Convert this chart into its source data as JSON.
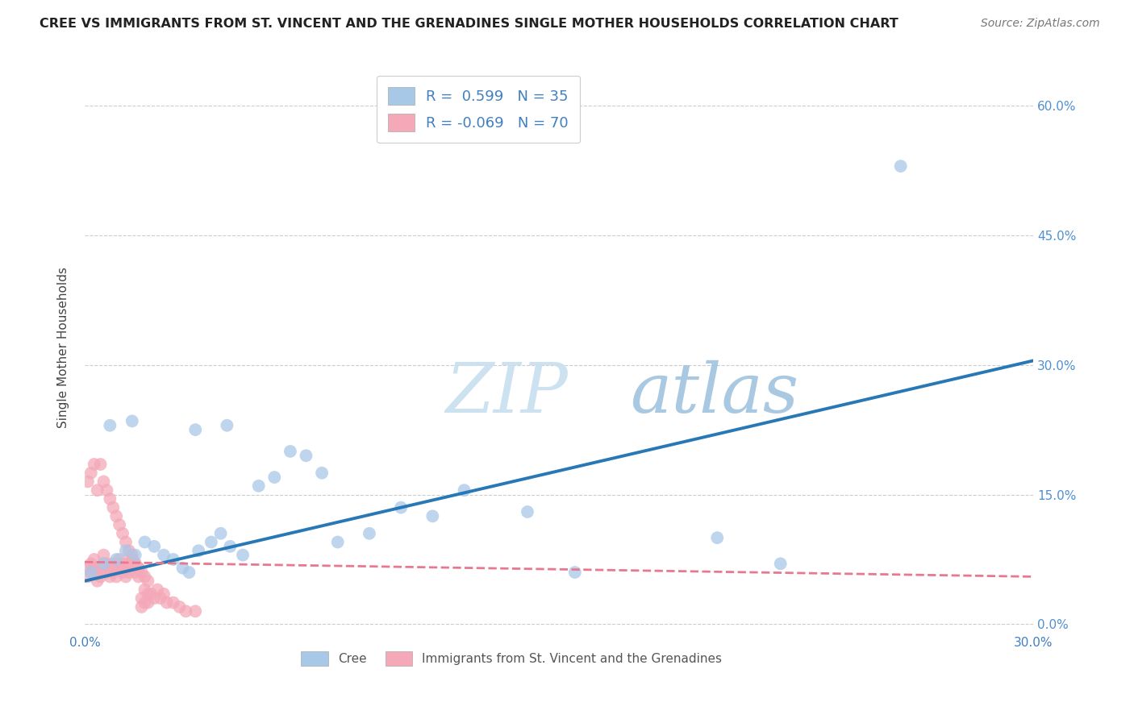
{
  "title": "CREE VS IMMIGRANTS FROM ST. VINCENT AND THE GRENADINES SINGLE MOTHER HOUSEHOLDS CORRELATION CHART",
  "source": "Source: ZipAtlas.com",
  "ylabel": "Single Mother Households",
  "xlim": [
    0.0,
    0.3
  ],
  "ylim": [
    -0.01,
    0.65
  ],
  "yticks": [
    0.0,
    0.15,
    0.3,
    0.45,
    0.6
  ],
  "ytick_labels": [
    "",
    "",
    "",
    "",
    ""
  ],
  "ytick_right_labels": [
    "0.0%",
    "15.0%",
    "30.0%",
    "45.0%",
    "60.0%"
  ],
  "xticks": [
    0.0,
    0.05,
    0.1,
    0.15,
    0.2,
    0.25,
    0.3
  ],
  "xtick_labels": [
    "0.0%",
    "",
    "",
    "",
    "",
    "",
    "30.0%"
  ],
  "blue_R": "0.599",
  "blue_N": "35",
  "pink_R": "-0.069",
  "pink_N": "70",
  "blue_color": "#a8c8e8",
  "pink_color": "#f4a8b8",
  "blue_line_color": "#2878b5",
  "pink_line_color": "#e87890",
  "axis_color": "#4080c0",
  "right_axis_color": "#5090d0",
  "legend_label_blue": "Cree",
  "legend_label_pink": "Immigrants from St. Vincent and the Grenadines",
  "blue_scatter_x": [
    0.002,
    0.006,
    0.01,
    0.013,
    0.016,
    0.019,
    0.022,
    0.025,
    0.028,
    0.031,
    0.033,
    0.036,
    0.04,
    0.043,
    0.046,
    0.05,
    0.055,
    0.06,
    0.065,
    0.07,
    0.075,
    0.08,
    0.09,
    0.1,
    0.11,
    0.12,
    0.14,
    0.155,
    0.2,
    0.22,
    0.035,
    0.045,
    0.015,
    0.008,
    0.258
  ],
  "blue_scatter_y": [
    0.06,
    0.07,
    0.075,
    0.085,
    0.08,
    0.095,
    0.09,
    0.08,
    0.075,
    0.065,
    0.06,
    0.085,
    0.095,
    0.105,
    0.09,
    0.08,
    0.16,
    0.17,
    0.2,
    0.195,
    0.175,
    0.095,
    0.105,
    0.135,
    0.125,
    0.155,
    0.13,
    0.06,
    0.1,
    0.07,
    0.225,
    0.23,
    0.235,
    0.23,
    0.53
  ],
  "pink_scatter_x": [
    0.001,
    0.001,
    0.002,
    0.002,
    0.003,
    0.003,
    0.004,
    0.004,
    0.005,
    0.005,
    0.006,
    0.006,
    0.007,
    0.007,
    0.008,
    0.008,
    0.009,
    0.009,
    0.01,
    0.01,
    0.011,
    0.011,
    0.012,
    0.012,
    0.013,
    0.013,
    0.014,
    0.014,
    0.015,
    0.015,
    0.016,
    0.016,
    0.017,
    0.017,
    0.018,
    0.018,
    0.019,
    0.019,
    0.02,
    0.02,
    0.021,
    0.022,
    0.023,
    0.024,
    0.025,
    0.026,
    0.028,
    0.03,
    0.032,
    0.035,
    0.001,
    0.002,
    0.003,
    0.004,
    0.005,
    0.006,
    0.007,
    0.008,
    0.009,
    0.01,
    0.011,
    0.012,
    0.013,
    0.014,
    0.015,
    0.016,
    0.017,
    0.018,
    0.019,
    0.02
  ],
  "pink_scatter_y": [
    0.055,
    0.065,
    0.06,
    0.07,
    0.065,
    0.075,
    0.05,
    0.06,
    0.055,
    0.065,
    0.07,
    0.08,
    0.06,
    0.07,
    0.065,
    0.055,
    0.06,
    0.07,
    0.055,
    0.065,
    0.075,
    0.065,
    0.07,
    0.06,
    0.065,
    0.055,
    0.06,
    0.07,
    0.065,
    0.075,
    0.06,
    0.07,
    0.055,
    0.065,
    0.02,
    0.03,
    0.04,
    0.025,
    0.035,
    0.025,
    0.035,
    0.03,
    0.04,
    0.03,
    0.035,
    0.025,
    0.025,
    0.02,
    0.015,
    0.015,
    0.165,
    0.175,
    0.185,
    0.155,
    0.185,
    0.165,
    0.155,
    0.145,
    0.135,
    0.125,
    0.115,
    0.105,
    0.095,
    0.085,
    0.08,
    0.07,
    0.065,
    0.06,
    0.055,
    0.05
  ],
  "blue_trend_x": [
    0.0,
    0.3
  ],
  "blue_trend_y": [
    0.05,
    0.305
  ],
  "pink_trend_x": [
    0.0,
    0.3
  ],
  "pink_trend_y": [
    0.072,
    0.055
  ]
}
